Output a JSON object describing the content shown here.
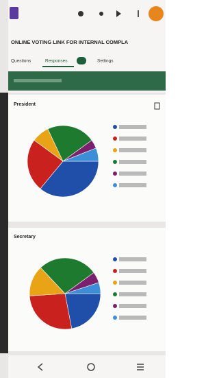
{
  "form_title": "ONLINE VOTING LINK FOR INTERNAL COMPLA",
  "tabs": [
    "Questions",
    "Responses",
    "Settings"
  ],
  "chart_data": [
    {
      "type": "pie",
      "title": "President",
      "values": [
        36,
        24,
        8,
        22,
        4,
        6
      ],
      "colors": [
        "#1f4fa8",
        "#c9211e",
        "#e8a317",
        "#1e7a2e",
        "#7b1f6e",
        "#3c8fd6"
      ]
    },
    {
      "type": "pie",
      "title": "Secretary",
      "values": [
        22,
        27,
        14,
        27,
        5,
        5
      ],
      "colors": [
        "#1f4fa8",
        "#c9211e",
        "#e8a317",
        "#1e7a2e",
        "#7b1f6e",
        "#3c8fd6"
      ]
    }
  ]
}
